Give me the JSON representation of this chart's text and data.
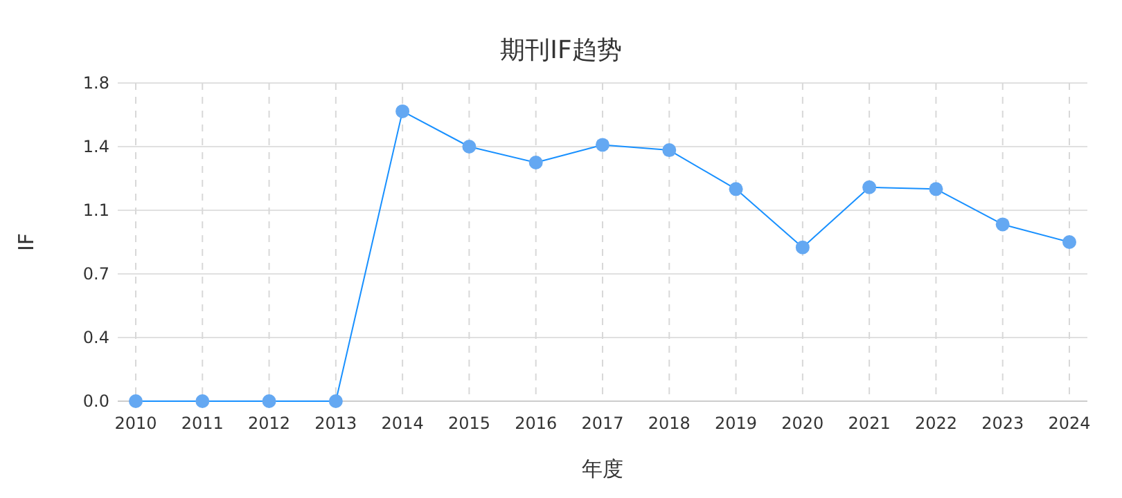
{
  "chart_data": {
    "type": "line",
    "title": "期刊IF趋势",
    "xlabel": "年度",
    "ylabel": "IF",
    "categories": [
      "2010",
      "2011",
      "2012",
      "2013",
      "2014",
      "2015",
      "2016",
      "2017",
      "2018",
      "2019",
      "2020",
      "2021",
      "2022",
      "2023",
      "2024"
    ],
    "series": [
      {
        "color": "#1890ff",
        "values": [
          0,
          0,
          0,
          0,
          1.64,
          1.44,
          1.35,
          1.45,
          1.42,
          1.2,
          0.87,
          1.21,
          1.2,
          1.0,
          0.9
        ]
      }
    ],
    "ylim": [
      0,
      1.8
    ],
    "yticks": [
      {
        "value": 0,
        "label": "0.0"
      },
      {
        "value": 0.36,
        "label": "0.4"
      },
      {
        "value": 0.72,
        "label": "0.7"
      },
      {
        "value": 1.08,
        "label": "1.1"
      },
      {
        "value": 1.44,
        "label": "1.4"
      },
      1.8
    ],
    "grid": true,
    "marker": "circle",
    "line_style": "solid"
  }
}
